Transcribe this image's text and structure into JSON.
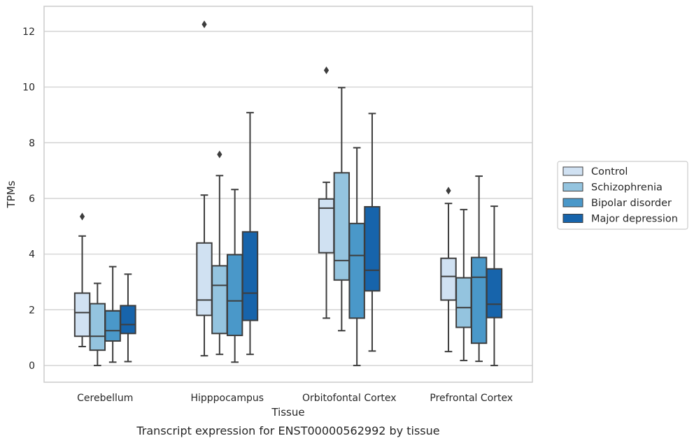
{
  "chart_data": {
    "type": "box",
    "title": "",
    "caption": "Transcript expression for ENST00000562992 by tissue",
    "xlabel": "Tissue",
    "ylabel": "TPMs",
    "ylim": [
      -0.6,
      12.9
    ],
    "yticks": [
      0,
      2,
      4,
      6,
      8,
      10,
      12
    ],
    "grid": "horizontal",
    "legend_position": "right",
    "categories": [
      "Cerebellum",
      "Hipppocampus",
      "Orbitofontal Cortex",
      "Prefrontal Cortex"
    ],
    "series": [
      {
        "name": "Control",
        "color": "#d0e1f2",
        "boxes": [
          {
            "whisker_low": 0.68,
            "q1": 1.05,
            "median": 1.9,
            "q3": 2.6,
            "whisker_high": 4.65,
            "outliers": [
              5.35
            ]
          },
          {
            "whisker_low": 0.35,
            "q1": 1.8,
            "median": 2.35,
            "q3": 4.4,
            "whisker_high": 6.12,
            "outliers": [
              12.25
            ]
          },
          {
            "whisker_low": 1.7,
            "q1": 4.05,
            "median": 5.65,
            "q3": 5.98,
            "whisker_high": 6.58,
            "outliers": [
              10.6
            ]
          },
          {
            "whisker_low": 0.5,
            "q1": 2.35,
            "median": 3.2,
            "q3": 3.85,
            "whisker_high": 5.82,
            "outliers": [
              6.28
            ]
          }
        ]
      },
      {
        "name": "Schizophrenia",
        "color": "#94c4df",
        "boxes": [
          {
            "whisker_low": 0.0,
            "q1": 0.55,
            "median": 1.05,
            "q3": 2.22,
            "whisker_high": 2.95,
            "outliers": []
          },
          {
            "whisker_low": 0.4,
            "q1": 1.15,
            "median": 2.88,
            "q3": 3.58,
            "whisker_high": 6.82,
            "outliers": [
              7.58
            ]
          },
          {
            "whisker_low": 1.25,
            "q1": 3.07,
            "median": 3.77,
            "q3": 6.92,
            "whisker_high": 9.98,
            "outliers": []
          },
          {
            "whisker_low": 0.18,
            "q1": 1.37,
            "median": 2.08,
            "q3": 3.15,
            "whisker_high": 5.6,
            "outliers": []
          }
        ]
      },
      {
        "name": "Bipolar disorder",
        "color": "#4a98c9",
        "boxes": [
          {
            "whisker_low": 0.12,
            "q1": 0.88,
            "median": 1.25,
            "q3": 1.96,
            "whisker_high": 3.55,
            "outliers": []
          },
          {
            "whisker_low": 0.12,
            "q1": 1.08,
            "median": 2.32,
            "q3": 3.98,
            "whisker_high": 6.32,
            "outliers": []
          },
          {
            "whisker_low": 0.0,
            "q1": 1.7,
            "median": 3.95,
            "q3": 5.1,
            "whisker_high": 7.82,
            "outliers": []
          },
          {
            "whisker_low": 0.15,
            "q1": 0.8,
            "median": 3.17,
            "q3": 3.88,
            "whisker_high": 6.8,
            "outliers": []
          }
        ]
      },
      {
        "name": "Major depression",
        "color": "#1764ab",
        "boxes": [
          {
            "whisker_low": 0.14,
            "q1": 1.15,
            "median": 1.47,
            "q3": 2.15,
            "whisker_high": 3.28,
            "outliers": []
          },
          {
            "whisker_low": 0.4,
            "q1": 1.62,
            "median": 2.6,
            "q3": 4.8,
            "whisker_high": 9.08,
            "outliers": []
          },
          {
            "whisker_low": 0.52,
            "q1": 2.68,
            "median": 3.42,
            "q3": 5.7,
            "whisker_high": 9.05,
            "outliers": []
          },
          {
            "whisker_low": 0.0,
            "q1": 1.72,
            "median": 2.2,
            "q3": 3.47,
            "whisker_high": 5.72,
            "outliers": []
          }
        ]
      }
    ]
  }
}
